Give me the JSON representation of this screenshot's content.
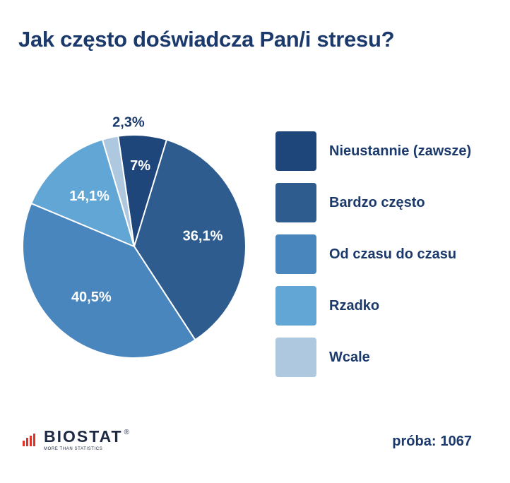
{
  "title": "Jak często doświadcza Pan/i stresu?",
  "chart_data": {
    "type": "pie",
    "title": "Jak często doświadcza Pan/i stresu?",
    "legend_position": "right",
    "slices": [
      {
        "label": "Nieustannie (zawsze)",
        "value": 7,
        "display": "7%",
        "color": "#1e467a"
      },
      {
        "label": "Bardzo często",
        "value": 36.1,
        "display": "36,1%",
        "color": "#2f5c8e"
      },
      {
        "label": "Od czasu do czasu",
        "value": 40.5,
        "display": "40,5%",
        "color": "#4a86be"
      },
      {
        "label": "Rzadko",
        "value": 14.1,
        "display": "14,1%",
        "color": "#62a6d6"
      },
      {
        "label": "Wcale",
        "value": 2.3,
        "display": "2,3%",
        "color": "#aec8e0"
      }
    ]
  },
  "footer": {
    "logo_text": "BIOSTAT",
    "logo_reg": "®",
    "logo_tagline": "MORE THAN STATISTICS",
    "sample_label": "próba:",
    "sample_value": "1067"
  },
  "colors": {
    "title": "#1b3a6b",
    "logo_accent": "#e0312a"
  },
  "icons": {
    "logo": "bar-chart-icon"
  }
}
